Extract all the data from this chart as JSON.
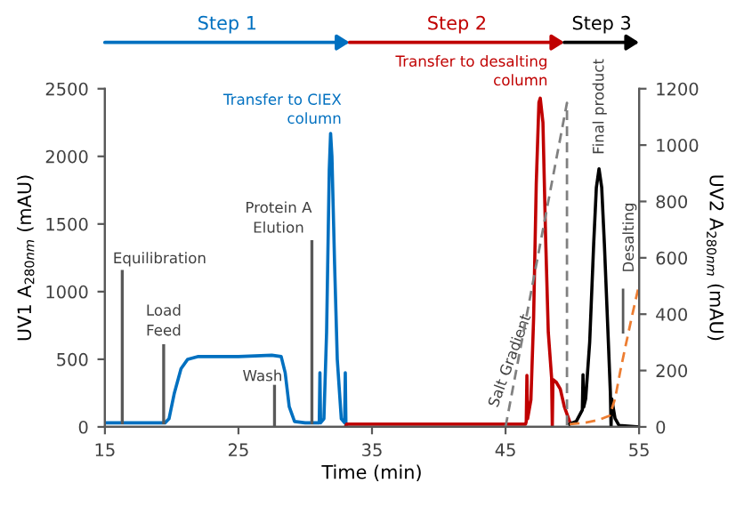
{
  "chart_data": {
    "type": "line",
    "xlabel": "Time (min)",
    "ylabel": "UV1 A$_{280nm}$ (mAU)",
    "y2label": "UV2 A$_{280nm}$ (mAU)",
    "xlim": [
      15,
      55
    ],
    "xticks": [
      15,
      25,
      35,
      45,
      55
    ],
    "ylim": [
      0,
      2500
    ],
    "yticks": [
      0,
      500,
      1000,
      1500,
      2000,
      2500
    ],
    "y2lim": [
      0,
      1200
    ],
    "y2ticks": [
      0,
      200,
      400,
      600,
      800,
      1000,
      1200
    ],
    "grid": false,
    "legend": false,
    "marker": "none",
    "series": [
      {
        "color": "#0070c0",
        "line_style": "solid",
        "axis": "y",
        "x": [
          15,
          19.5,
          19.8,
          20.2,
          20.7,
          21.2,
          22,
          25,
          27.5,
          28.2,
          28.5,
          28.8,
          29.2,
          30,
          31.05,
          31.1,
          31.15,
          31.4,
          31.6,
          31.8,
          31.9,
          32.0,
          32.2,
          32.4,
          32.7,
          32.95,
          33.0,
          33.05,
          33.1
        ],
        "values": [
          30,
          30,
          60,
          250,
          430,
          500,
          520,
          520,
          530,
          520,
          400,
          150,
          40,
          30,
          30,
          400,
          30,
          60,
          700,
          1900,
          2170,
          2000,
          1200,
          500,
          60,
          30,
          400,
          0,
          0
        ]
      },
      {
        "color": "#c00000",
        "line_style": "solid",
        "axis": "y",
        "x": [
          33.0,
          33.1,
          46.5,
          46.55,
          46.6,
          46.65,
          46.9,
          47.1,
          47.3,
          47.5,
          47.6,
          47.8,
          48.0,
          48.2,
          48.45,
          48.5,
          48.55,
          48.8,
          49.1,
          49.4,
          49.8
        ],
        "values": [
          0,
          20,
          20,
          40,
          380,
          60,
          200,
          800,
          1800,
          2400,
          2430,
          2250,
          1400,
          700,
          360,
          0,
          350,
          330,
          280,
          150,
          40
        ]
      },
      {
        "color": "#000000",
        "line_style": "solid",
        "axis": "y2",
        "x": [
          49.8,
          50.3,
          50.75,
          50.8,
          50.85,
          51.0,
          51.3,
          51.6,
          51.8,
          52.0,
          52.2,
          52.4,
          52.7,
          52.85,
          52.9,
          52.95,
          53.2,
          53.5,
          55
        ],
        "values": [
          10,
          20,
          60,
          185,
          70,
          100,
          300,
          650,
          850,
          916,
          850,
          650,
          300,
          120,
          0,
          100,
          30,
          5,
          0
        ]
      },
      {
        "color": "#ed7d31",
        "line_style": "dashed",
        "axis": "y2",
        "x": [
          49.8,
          51,
          52,
          52.8,
          53.2,
          53.6,
          54,
          54.5,
          55
        ],
        "values": [
          10,
          15,
          25,
          40,
          100,
          200,
          290,
          400,
          505
        ]
      },
      {
        "color": "#808080",
        "line_style": "dashed",
        "axis": "y2",
        "x": [
          45,
          49.6,
          49.6
        ],
        "values": [
          0,
          1150,
          0
        ]
      }
    ],
    "annotations": [
      "Step 1",
      "Step 2",
      "Step 3",
      {
        "text": "Equilibration",
        "x": 16.3,
        "y": 30
      },
      {
        "text": "Load\nFeed",
        "x": 19.4,
        "y": 30
      },
      "Wash",
      {
        "text": "Protein A\nElution",
        "x": 30.5,
        "y": 30
      },
      "Transfer to CIEX\ncolumn",
      "Transfer to desalting\ncolumn",
      "Salt Gradient",
      "Final product",
      "Desalting"
    ]
  }
}
